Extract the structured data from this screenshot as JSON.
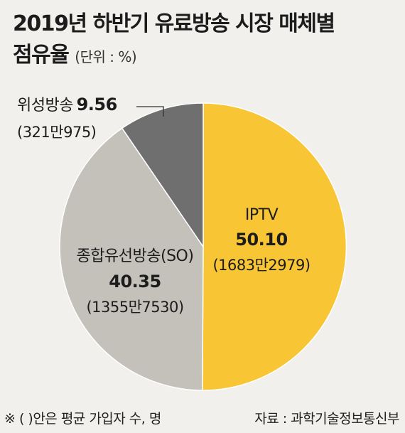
{
  "title": {
    "line1": "2019년 하반기 유료방송 시장 매체별",
    "line2": "점유율",
    "unit": "(단위 : %)"
  },
  "chart_data": {
    "type": "pie",
    "slices": [
      {
        "label": "IPTV",
        "value": 50.1,
        "value_label": "50.10",
        "note": "(1683만2979)",
        "color": "#f8c535"
      },
      {
        "label": "종합유선방송(SO)",
        "value": 40.35,
        "value_label": "40.35",
        "note": "(1355만7530)",
        "color": "#c3c1ba"
      },
      {
        "label": "위성방송",
        "value": 9.56,
        "value_label": "9.56",
        "note": "(321만975)",
        "color": "#6f6f6f"
      }
    ]
  },
  "footer": {
    "note": "※ (   )안은 평균 가입자 수, 명",
    "source": "자료 : 과학기술정보통신부"
  }
}
